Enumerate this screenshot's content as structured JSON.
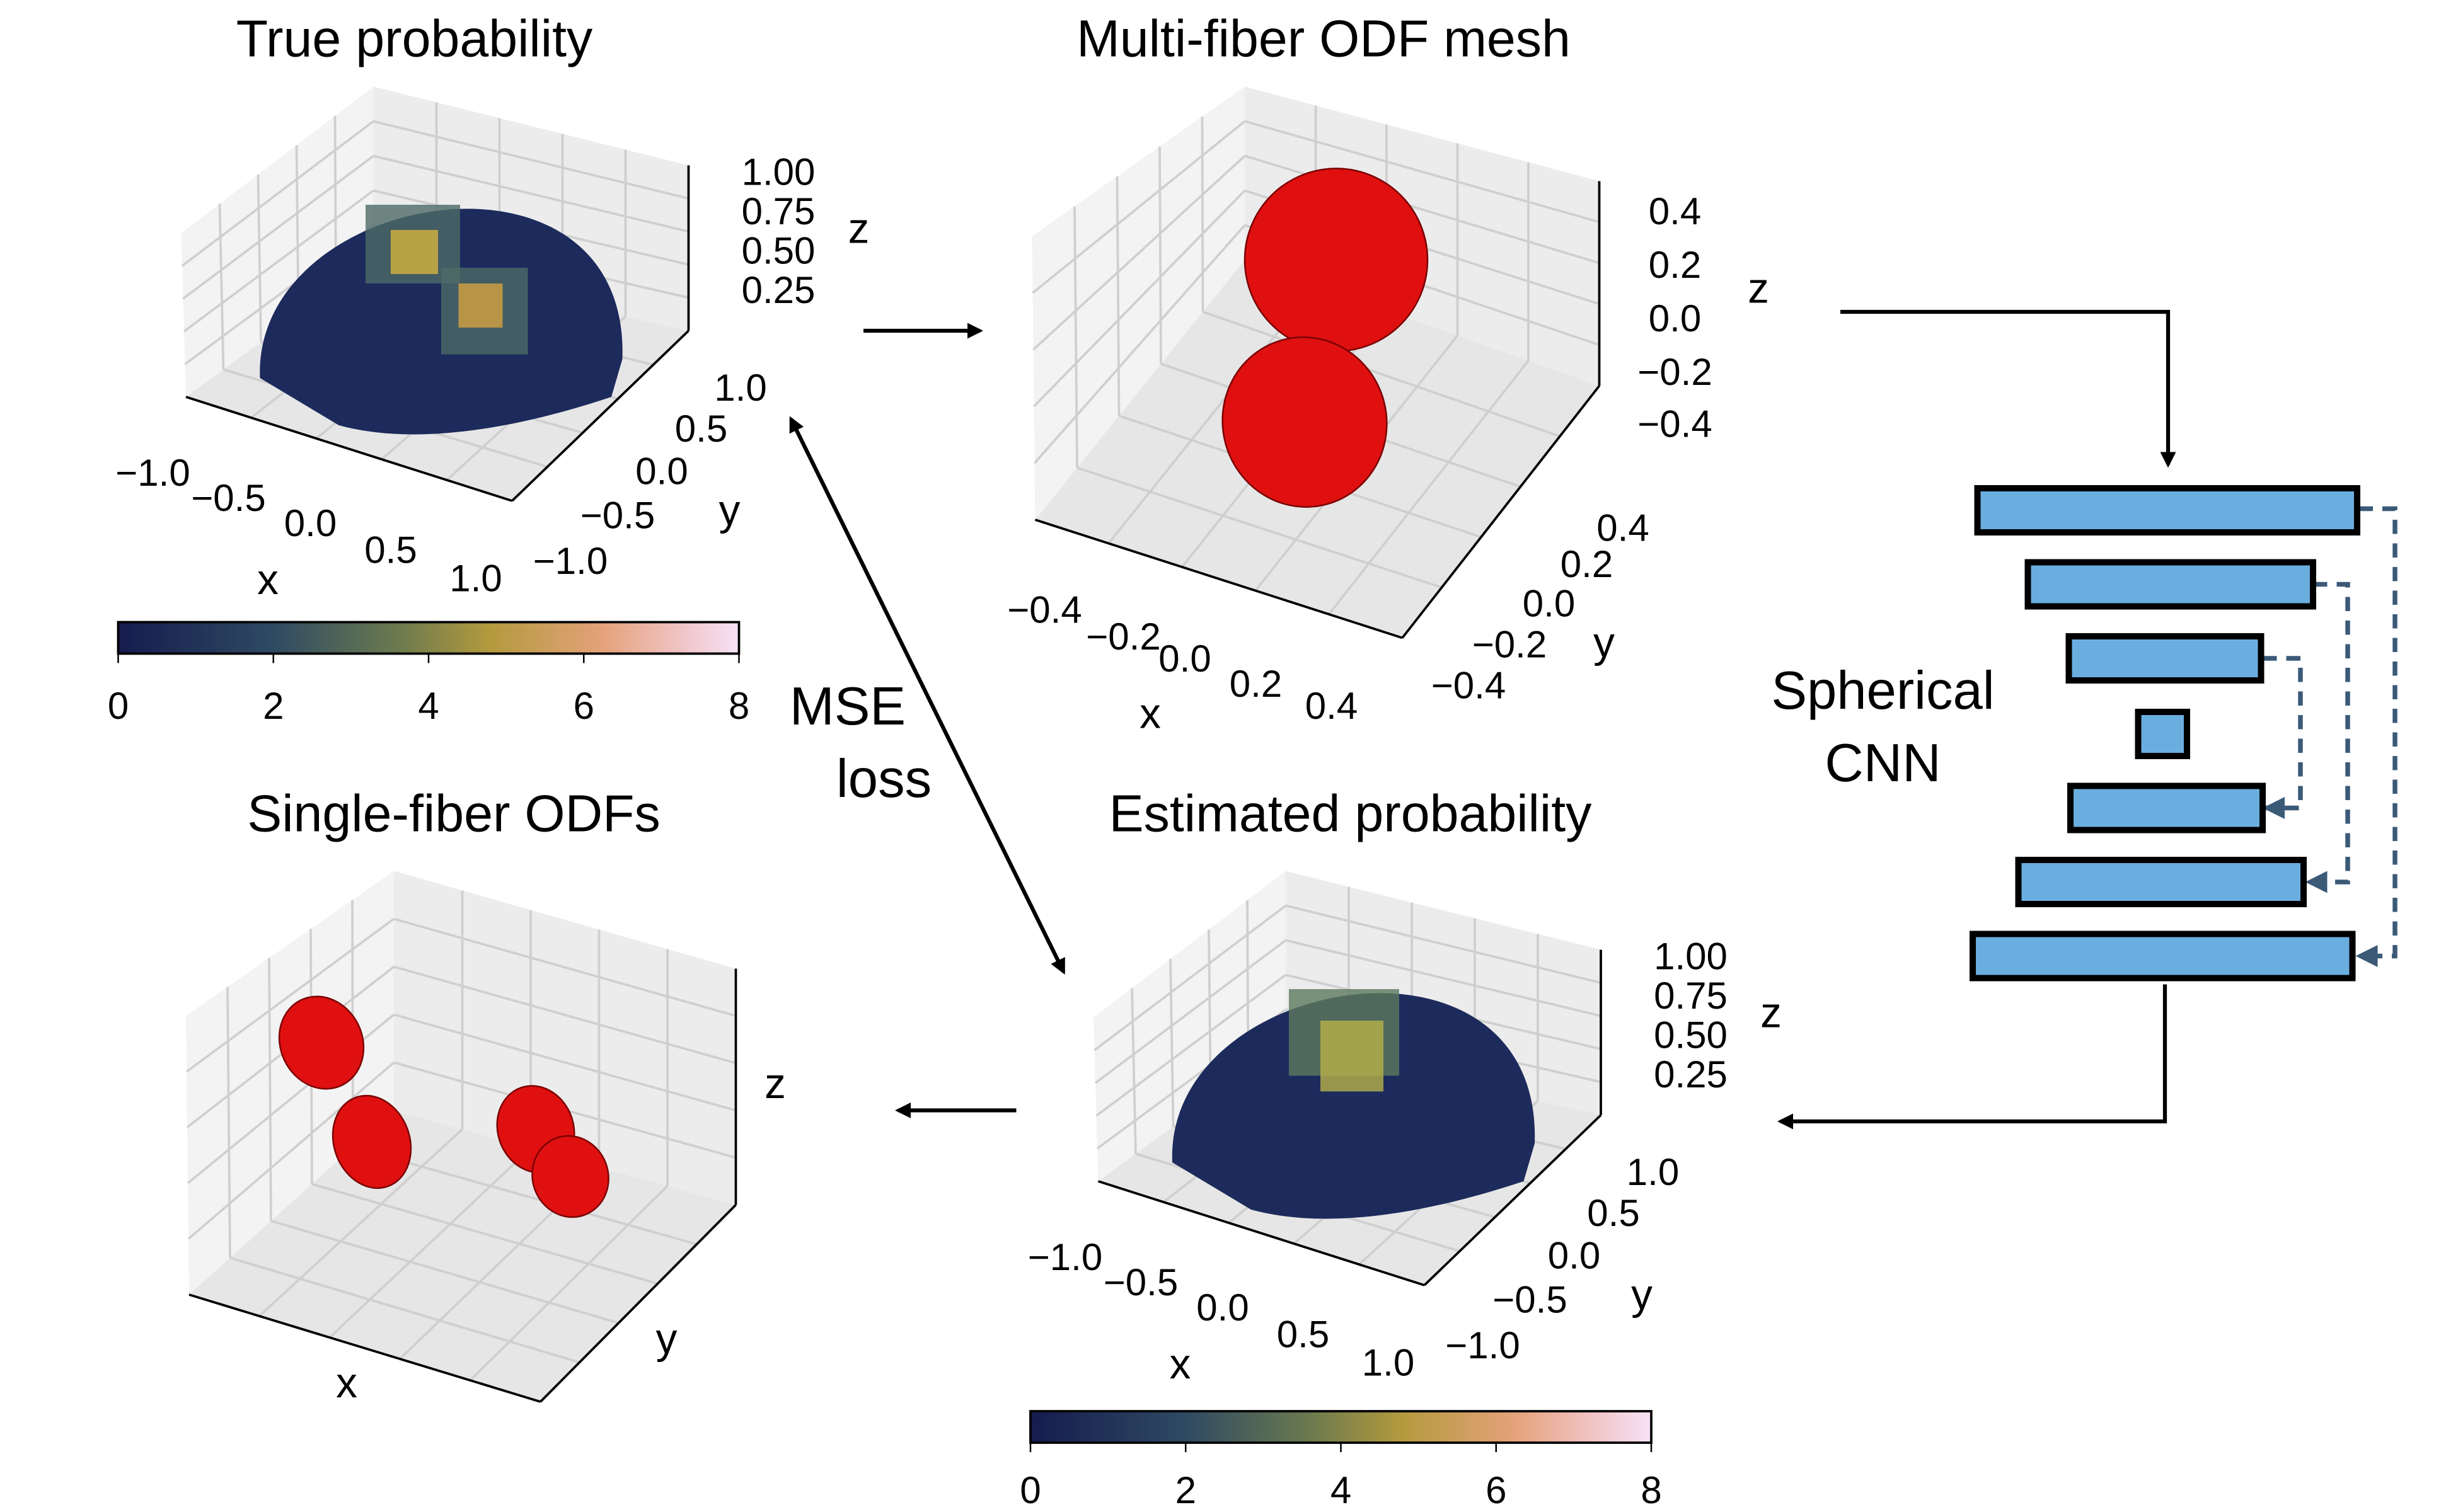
{
  "panels": [
    {
      "title": "True probability",
      "x_ticks": [
        "−1.0",
        "−0.5",
        "0.0",
        "0.5",
        "1.0"
      ],
      "y_ticks": [
        "1.0",
        "0.5",
        "0.0",
        "−0.5",
        "−1.0"
      ],
      "z_ticks": [
        "1.00",
        "0.75",
        "0.50",
        "0.25"
      ],
      "x_label": "x",
      "y_label": "y",
      "z_label": "z",
      "colorbar_ticks": [
        "0",
        "2",
        "4",
        "6",
        "8"
      ]
    },
    {
      "title": "Multi-fiber ODF mesh",
      "x_ticks": [
        "−0.4",
        "−0.2",
        "0.0",
        "0.2",
        "0.4"
      ],
      "y_ticks": [
        "0.4",
        "0.2",
        "0.0",
        "−0.2",
        "−0.4"
      ],
      "z_ticks": [
        "0.4",
        "0.2",
        "0.0",
        "−0.2",
        "−0.4"
      ],
      "x_label": "x",
      "y_label": "y",
      "z_label": "z"
    },
    {
      "title": "Estimated probability",
      "x_ticks": [
        "−1.0",
        "−0.5",
        "0.0",
        "0.5",
        "1.0"
      ],
      "y_ticks": [
        "1.0",
        "0.5",
        "0.0",
        "−0.5",
        "−1.0"
      ],
      "z_ticks": [
        "1.00",
        "0.75",
        "0.50",
        "0.25"
      ],
      "x_label": "x",
      "y_label": "y",
      "z_label": "z",
      "colorbar_ticks": [
        "0",
        "2",
        "4",
        "6",
        "8"
      ]
    },
    {
      "title": "Single-fiber ODFs",
      "x_label": "x",
      "y_label": "y",
      "z_label": "z"
    }
  ],
  "loss_label": [
    "MSE",
    "loss"
  ],
  "network_label": [
    "Spherical",
    "CNN"
  ]
}
